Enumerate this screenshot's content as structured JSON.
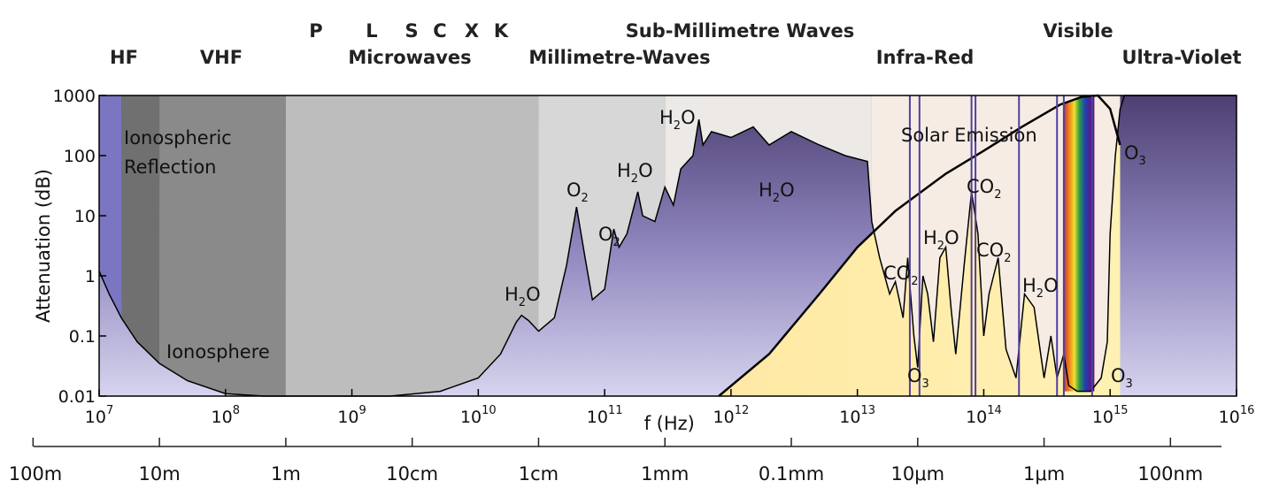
{
  "chart_data": {
    "type": "area",
    "x_axis": {
      "label": "f (Hz)",
      "scale": "log",
      "range": [
        10000000,
        10000000000000000
      ],
      "ticks": [
        {
          "value": 10000000,
          "base": "10",
          "exp": "7"
        },
        {
          "value": 100000000,
          "base": "10",
          "exp": "8"
        },
        {
          "value": 1000000000,
          "base": "10",
          "exp": "9"
        },
        {
          "value": 10000000000,
          "base": "10",
          "exp": "10"
        },
        {
          "value": 100000000000,
          "base": "10",
          "exp": "11"
        },
        {
          "value": 1000000000000,
          "base": "10",
          "exp": "12"
        },
        {
          "value": 10000000000000,
          "base": "10",
          "exp": "13"
        },
        {
          "value": 100000000000000,
          "base": "10",
          "exp": "14"
        },
        {
          "value": 1000000000000000,
          "base": "10",
          "exp": "15"
        },
        {
          "value": 10000000000000000,
          "base": "10",
          "exp": "16"
        }
      ]
    },
    "y_axis": {
      "label": "Attenuation (dB)",
      "scale": "log",
      "range": [
        0.01,
        1000
      ],
      "ticks": [
        {
          "value": 1000,
          "text": "1000"
        },
        {
          "value": 100,
          "text": "100"
        },
        {
          "value": 10,
          "text": "10"
        },
        {
          "value": 1,
          "text": "1"
        },
        {
          "value": 0.1,
          "text": "0.1"
        },
        {
          "value": 0.01,
          "text": "0.01"
        }
      ]
    },
    "wavelength_axis": {
      "ticks": [
        {
          "freq": 3000000,
          "text": "100m"
        },
        {
          "freq": 30000000,
          "text": "10m"
        },
        {
          "freq": 300000000,
          "text": "1m"
        },
        {
          "freq": 3000000000,
          "text": "10cm"
        },
        {
          "freq": 30000000000,
          "text": "1cm"
        },
        {
          "freq": 300000000000,
          "text": "1mm"
        },
        {
          "freq": 3000000000000,
          "text": "0.1mm"
        },
        {
          "freq": 30000000000000,
          "text": "10μm"
        },
        {
          "freq": 300000000000000,
          "text": "1μm"
        },
        {
          "freq": 3000000000000000,
          "text": "100nm"
        }
      ]
    },
    "bands": [
      "HF",
      "VHF",
      "P",
      "L",
      "S",
      "C",
      "X",
      "K",
      "Microwaves",
      "Millimetre-Waves",
      "Sub-Millimetre Waves",
      "Infra-Red",
      "Visible",
      "Ultra-Violet"
    ],
    "regions": [
      "Ionospheric Reflection",
      "Ionosphere",
      "Solar Emission"
    ],
    "absorbers": [
      {
        "base": "H",
        "sub": "2",
        "rest": "O",
        "freq": 22000000000
      },
      {
        "base": "O",
        "sub": "2",
        "rest": "",
        "freq": 60000000000
      },
      {
        "base": "O",
        "sub": "2",
        "rest": "",
        "freq": 118000000000
      },
      {
        "base": "H",
        "sub": "2",
        "rest": "O",
        "freq": 183000000000
      },
      {
        "base": "H",
        "sub": "2",
        "rest": "O",
        "freq": 557000000000
      },
      {
        "base": "H",
        "sub": "2",
        "rest": "O",
        "freq": 3000000000000
      },
      {
        "base": "C",
        "sub": "2",
        "rest": "",
        "prefix": "CO",
        "freq": 20000000000000
      },
      {
        "base": "H",
        "sub": "2",
        "rest": "O",
        "freq": 50000000000000
      },
      {
        "base": "CO",
        "sub": "2",
        "rest": "",
        "freq": 90000000000000
      },
      {
        "base": "CO",
        "sub": "2",
        "rest": "",
        "freq": 130000000000000
      },
      {
        "base": "H",
        "sub": "2",
        "rest": "O",
        "freq": 250000000000000
      },
      {
        "base": "O",
        "sub": "3",
        "rest": "",
        "freq": 30000000000000
      },
      {
        "base": "O",
        "sub": "3",
        "rest": "",
        "freq": 800000000000000
      },
      {
        "base": "O",
        "sub": "3",
        "rest": "",
        "freq": 1300000000000000
      }
    ],
    "attenuation": [
      [
        10000000,
        1.2
      ],
      [
        12000000,
        0.5
      ],
      [
        15000000,
        0.2
      ],
      [
        20000000,
        0.08
      ],
      [
        30000000,
        0.035
      ],
      [
        50000000,
        0.018
      ],
      [
        100000000,
        0.011
      ],
      [
        200000000,
        0.01
      ],
      [
        500000000,
        0.01
      ],
      [
        1000000000,
        0.01
      ],
      [
        2000000000,
        0.01
      ],
      [
        5000000000,
        0.012
      ],
      [
        10000000000,
        0.02
      ],
      [
        15000000000,
        0.05
      ],
      [
        20000000000,
        0.17
      ],
      [
        22000000000,
        0.22
      ],
      [
        25000000000,
        0.18
      ],
      [
        30000000000,
        0.12
      ],
      [
        40000000000,
        0.2
      ],
      [
        50000000000,
        1.5
      ],
      [
        60000000000,
        14
      ],
      [
        70000000000,
        2
      ],
      [
        80000000000,
        0.4
      ],
      [
        100000000000,
        0.6
      ],
      [
        118000000000,
        6
      ],
      [
        130000000000,
        3
      ],
      [
        150000000000,
        5
      ],
      [
        183000000000,
        25
      ],
      [
        200000000000,
        10
      ],
      [
        250000000000,
        8
      ],
      [
        300000000000,
        30
      ],
      [
        350000000000,
        15
      ],
      [
        400000000000,
        60
      ],
      [
        500000000000,
        100
      ],
      [
        557000000000,
        400
      ],
      [
        600000000000,
        150
      ],
      [
        700000000000,
        250
      ],
      [
        1000000000000,
        200
      ],
      [
        1500000000000,
        300
      ],
      [
        2000000000000,
        150
      ],
      [
        3000000000000,
        250
      ],
      [
        5000000000000,
        150
      ],
      [
        8000000000000,
        100
      ],
      [
        12000000000000,
        80
      ],
      [
        13000000000000,
        8
      ],
      [
        15000000000000,
        2
      ],
      [
        18000000000000,
        0.5
      ],
      [
        20000000000000,
        0.8
      ],
      [
        23000000000000,
        0.2
      ],
      [
        25000000000000,
        2
      ],
      [
        28000000000000,
        0.1
      ],
      [
        30000000000000,
        0.03
      ],
      [
        33000000000000,
        1
      ],
      [
        36000000000000,
        0.5
      ],
      [
        40000000000000,
        0.08
      ],
      [
        45000000000000,
        2
      ],
      [
        50000000000000,
        3
      ],
      [
        55000000000000,
        0.3
      ],
      [
        60000000000000,
        0.05
      ],
      [
        70000000000000,
        1.5
      ],
      [
        80000000000000,
        25
      ],
      [
        90000000000000,
        5
      ],
      [
        100000000000000,
        0.1
      ],
      [
        110000000000000,
        0.5
      ],
      [
        130000000000000,
        2
      ],
      [
        150000000000000,
        0.06
      ],
      [
        180000000000000,
        0.02
      ],
      [
        210000000000000,
        0.5
      ],
      [
        250000000000000,
        0.3
      ],
      [
        300000000000000,
        0.02
      ],
      [
        340000000000000,
        0.1
      ],
      [
        380000000000000,
        0.02
      ],
      [
        430000000000000,
        0.05
      ],
      [
        470000000000000,
        0.015
      ],
      [
        550000000000000,
        0.012
      ],
      [
        700000000000000,
        0.012
      ],
      [
        850000000000000,
        0.02
      ],
      [
        950000000000000,
        0.08
      ],
      [
        1000000000000000,
        5
      ],
      [
        1100000000000000,
        100
      ],
      [
        1200000000000000,
        600
      ],
      [
        1300000000000000,
        1000
      ],
      [
        2000000000000000,
        1000
      ],
      [
        10000000000000000,
        1000
      ]
    ],
    "solar_emission": [
      [
        800000000000,
        0.01
      ],
      [
        2000000000000,
        0.05
      ],
      [
        5000000000000,
        0.5
      ],
      [
        10000000000000,
        3
      ],
      [
        20000000000000,
        12
      ],
      [
        50000000000000,
        50
      ],
      [
        100000000000000,
        120
      ],
      [
        200000000000000,
        300
      ],
      [
        400000000000000,
        700
      ],
      [
        600000000000000,
        950
      ],
      [
        800000000000000,
        1000
      ],
      [
        1000000000000000,
        600
      ],
      [
        1200000000000000,
        150
      ]
    ],
    "colors": {
      "absorption_top": "#5e4a7e",
      "absorption_bottom": "#c9c6e6",
      "hf_band": "#7a76c2",
      "ionospheric_reflection": "#707070",
      "ionosphere_band": "#8a8a8a",
      "microwave_band": "#bdbdbd",
      "solar_fill": "#ffe8a8",
      "line": "#000000"
    }
  }
}
